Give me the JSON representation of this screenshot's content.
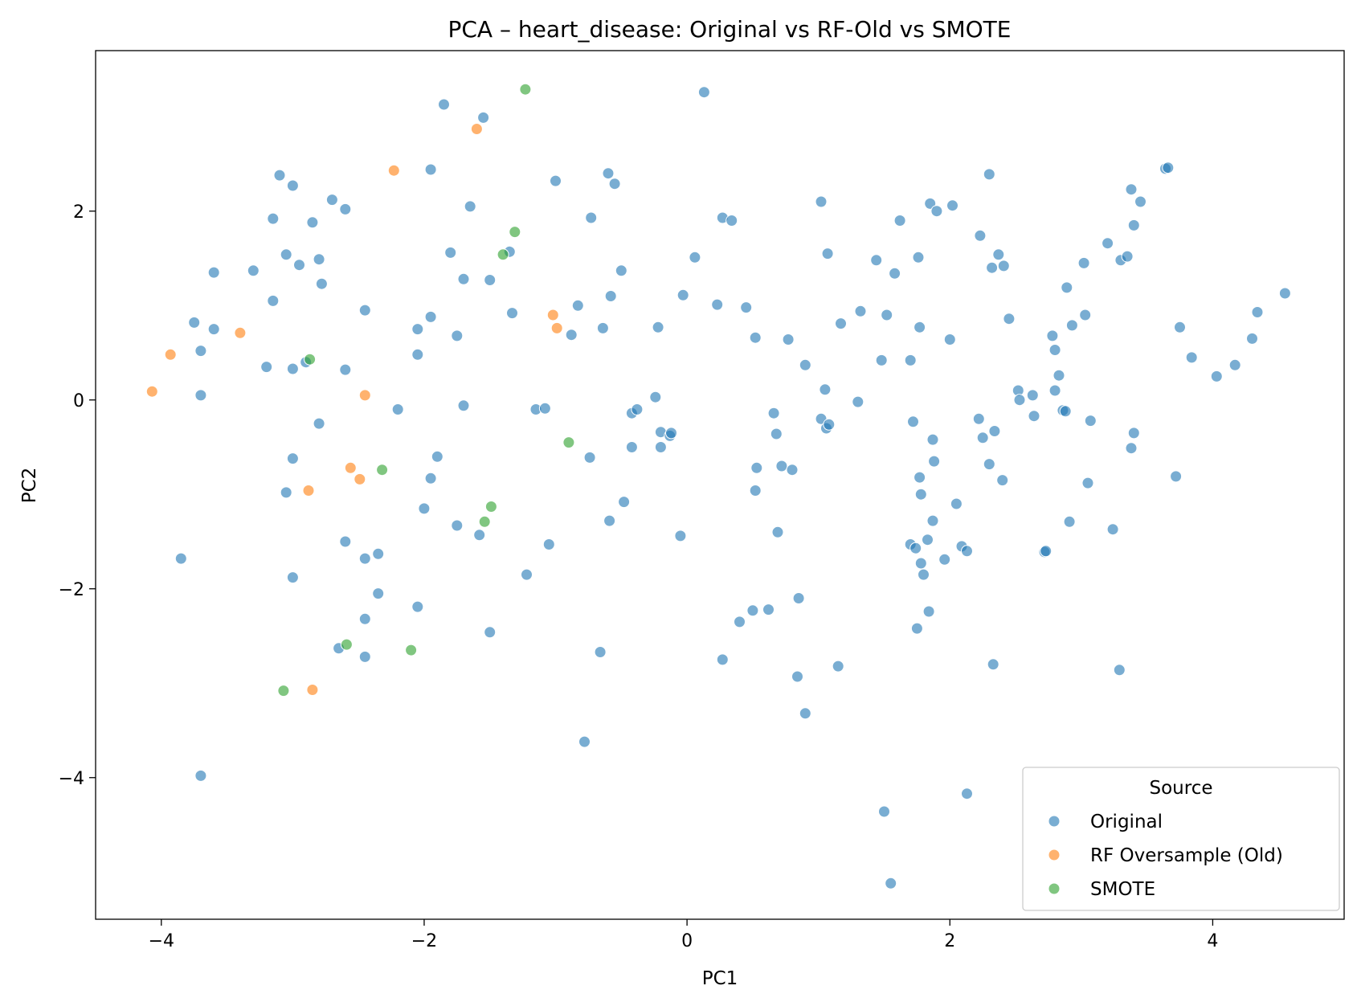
{
  "chart_data": {
    "type": "scatter",
    "title": "PCA – heart_disease: Original vs RF-Old vs SMOTE",
    "xlabel": "PC1",
    "ylabel": "PC2",
    "xlim": [
      -4.5,
      5.0
    ],
    "ylim": [
      -5.5,
      3.7
    ],
    "xticks": [
      -4,
      -2,
      0,
      2,
      4
    ],
    "yticks": [
      -4,
      -2,
      0,
      2
    ],
    "grid": false,
    "legend": {
      "title": "Source",
      "placement": "bottom-right"
    },
    "series": [
      {
        "name": "Original",
        "color": "#1f77b4",
        "points": [
          [
            -3.6,
            1.35
          ],
          [
            -3.3,
            1.37
          ],
          [
            -3.1,
            2.38
          ],
          [
            -3.0,
            2.27
          ],
          [
            -2.7,
            2.12
          ],
          [
            -2.6,
            2.02
          ],
          [
            -3.15,
            1.92
          ],
          [
            -2.85,
            1.88
          ],
          [
            -3.05,
            1.54
          ],
          [
            -2.95,
            1.43
          ],
          [
            -2.8,
            1.49
          ],
          [
            -2.78,
            1.23
          ],
          [
            -3.15,
            1.05
          ],
          [
            -3.75,
            0.82
          ],
          [
            -3.6,
            0.75
          ],
          [
            -3.7,
            0.52
          ],
          [
            -3.7,
            0.05
          ],
          [
            -3.2,
            0.35
          ],
          [
            -3.0,
            0.33
          ],
          [
            -2.9,
            0.4
          ],
          [
            -2.6,
            0.32
          ],
          [
            -2.45,
            0.95
          ],
          [
            -2.8,
            -0.25
          ],
          [
            -3.0,
            -0.62
          ],
          [
            -3.05,
            -0.98
          ],
          [
            -3.85,
            -1.68
          ],
          [
            -2.6,
            -1.5
          ],
          [
            -2.45,
            -1.68
          ],
          [
            -2.35,
            -1.63
          ],
          [
            -3.0,
            -1.88
          ],
          [
            -2.35,
            -2.05
          ],
          [
            -2.45,
            -2.32
          ],
          [
            -2.65,
            -2.63
          ],
          [
            -2.45,
            -2.72
          ],
          [
            -3.7,
            -3.98
          ],
          [
            -1.85,
            3.13
          ],
          [
            -1.55,
            2.99
          ],
          [
            -1.95,
            2.44
          ],
          [
            -1.65,
            2.05
          ],
          [
            -1.8,
            1.56
          ],
          [
            -1.7,
            1.28
          ],
          [
            -1.5,
            1.27
          ],
          [
            -1.35,
            1.57
          ],
          [
            -1.33,
            0.92
          ],
          [
            -2.05,
            0.75
          ],
          [
            -1.95,
            0.88
          ],
          [
            -2.05,
            0.48
          ],
          [
            -1.75,
            0.68
          ],
          [
            -1.7,
            -0.06
          ],
          [
            -2.2,
            -0.1
          ],
          [
            -1.9,
            -0.6
          ],
          [
            -1.95,
            -0.83
          ],
          [
            -2.0,
            -1.15
          ],
          [
            -1.75,
            -1.33
          ],
          [
            -1.58,
            -1.43
          ],
          [
            -2.05,
            -2.19
          ],
          [
            -1.5,
            -2.46
          ],
          [
            -1.22,
            -1.85
          ],
          [
            -1.0,
            2.32
          ],
          [
            -0.6,
            2.4
          ],
          [
            -0.55,
            2.29
          ],
          [
            -0.73,
            1.93
          ],
          [
            -0.5,
            1.37
          ],
          [
            -0.58,
            1.1
          ],
          [
            -0.83,
            1.0
          ],
          [
            -0.88,
            0.69
          ],
          [
            -0.64,
            0.76
          ],
          [
            -1.15,
            -0.1
          ],
          [
            -1.08,
            -0.09
          ],
          [
            -0.74,
            -0.61
          ],
          [
            -0.42,
            -0.14
          ],
          [
            -0.38,
            -0.1
          ],
          [
            -0.24,
            0.03
          ],
          [
            -0.42,
            -0.5
          ],
          [
            -0.2,
            -0.34
          ],
          [
            -0.2,
            -0.5
          ],
          [
            -0.13,
            -0.38
          ],
          [
            -0.12,
            -0.35
          ],
          [
            -0.22,
            0.77
          ],
          [
            -0.05,
            -1.44
          ],
          [
            -0.48,
            -1.08
          ],
          [
            -0.59,
            -1.28
          ],
          [
            -1.05,
            -1.53
          ],
          [
            -0.66,
            -2.67
          ],
          [
            -0.78,
            -3.62
          ],
          [
            0.13,
            3.26
          ],
          [
            0.27,
            1.93
          ],
          [
            0.34,
            1.9
          ],
          [
            0.06,
            1.51
          ],
          [
            -0.03,
            1.11
          ],
          [
            0.23,
            1.01
          ],
          [
            0.45,
            0.98
          ],
          [
            0.52,
            0.66
          ],
          [
            0.52,
            -0.96
          ],
          [
            0.53,
            -0.72
          ],
          [
            0.66,
            -0.14
          ],
          [
            0.68,
            -0.36
          ],
          [
            0.72,
            -0.7
          ],
          [
            0.8,
            -0.74
          ],
          [
            0.69,
            -1.4
          ],
          [
            0.5,
            -2.23
          ],
          [
            0.62,
            -2.22
          ],
          [
            0.4,
            -2.35
          ],
          [
            0.27,
            -2.75
          ],
          [
            0.77,
            0.64
          ],
          [
            0.9,
            0.37
          ],
          [
            0.85,
            -2.1
          ],
          [
            0.84,
            -2.93
          ],
          [
            0.9,
            -3.32
          ],
          [
            1.02,
            2.1
          ],
          [
            1.07,
            1.55
          ],
          [
            1.17,
            0.81
          ],
          [
            1.32,
            0.94
          ],
          [
            1.44,
            1.48
          ],
          [
            1.52,
            0.9
          ],
          [
            1.58,
            1.34
          ],
          [
            1.62,
            1.9
          ],
          [
            1.76,
            1.51
          ],
          [
            1.77,
            0.77
          ],
          [
            1.7,
            0.42
          ],
          [
            1.48,
            0.42
          ],
          [
            1.72,
            -0.23
          ],
          [
            1.05,
            0.11
          ],
          [
            1.02,
            -0.2
          ],
          [
            1.06,
            -0.3
          ],
          [
            1.08,
            -0.26
          ],
          [
            1.3,
            -0.02
          ],
          [
            1.77,
            -0.82
          ],
          [
            1.78,
            -1.0
          ],
          [
            1.7,
            -1.53
          ],
          [
            1.74,
            -1.57
          ],
          [
            1.78,
            -1.73
          ],
          [
            1.8,
            -1.85
          ],
          [
            1.83,
            -1.48
          ],
          [
            1.75,
            -2.42
          ],
          [
            1.84,
            -2.24
          ],
          [
            1.15,
            -2.82
          ],
          [
            1.5,
            -4.36
          ],
          [
            1.55,
            -5.12
          ],
          [
            1.85,
            2.08
          ],
          [
            1.9,
            2.0
          ],
          [
            2.02,
            2.06
          ],
          [
            2.0,
            0.64
          ],
          [
            1.87,
            -0.42
          ],
          [
            1.88,
            -0.65
          ],
          [
            1.87,
            -1.28
          ],
          [
            1.96,
            -1.69
          ],
          [
            2.05,
            -1.1
          ],
          [
            2.09,
            -1.55
          ],
          [
            2.13,
            -1.6
          ],
          [
            2.13,
            -4.17
          ],
          [
            2.22,
            -0.2
          ],
          [
            2.25,
            -0.4
          ],
          [
            2.3,
            -0.68
          ],
          [
            2.32,
            1.4
          ],
          [
            2.3,
            2.39
          ],
          [
            2.23,
            1.74
          ],
          [
            2.37,
            1.54
          ],
          [
            2.41,
            1.42
          ],
          [
            2.45,
            0.86
          ],
          [
            2.4,
            -0.85
          ],
          [
            2.34,
            -0.33
          ],
          [
            2.33,
            -2.8
          ],
          [
            2.52,
            0.1
          ],
          [
            2.53,
            0.0
          ],
          [
            2.63,
            0.05
          ],
          [
            2.64,
            -0.17
          ],
          [
            2.72,
            -1.61
          ],
          [
            2.73,
            -1.6
          ],
          [
            2.8,
            0.1
          ],
          [
            2.78,
            0.68
          ],
          [
            2.8,
            0.53
          ],
          [
            2.83,
            0.26
          ],
          [
            2.86,
            -0.11
          ],
          [
            2.88,
            -0.12
          ],
          [
            2.89,
            1.19
          ],
          [
            2.93,
            0.79
          ],
          [
            2.91,
            -1.29
          ],
          [
            3.02,
            1.45
          ],
          [
            3.03,
            0.9
          ],
          [
            3.05,
            -0.88
          ],
          [
            3.07,
            -0.22
          ],
          [
            3.2,
            1.66
          ],
          [
            3.24,
            -1.37
          ],
          [
            3.3,
            1.48
          ],
          [
            3.35,
            1.52
          ],
          [
            3.38,
            2.23
          ],
          [
            3.4,
            1.85
          ],
          [
            3.45,
            2.1
          ],
          [
            3.38,
            -0.51
          ],
          [
            3.4,
            -0.35
          ],
          [
            3.29,
            -2.86
          ],
          [
            3.64,
            2.45
          ],
          [
            3.66,
            2.46
          ],
          [
            3.75,
            0.77
          ],
          [
            3.72,
            -0.81
          ],
          [
            3.84,
            0.45
          ],
          [
            4.03,
            0.25
          ],
          [
            4.17,
            0.37
          ],
          [
            4.3,
            0.65
          ],
          [
            4.34,
            0.93
          ],
          [
            4.55,
            1.13
          ]
        ]
      },
      {
        "name": "RF Oversample (Old)",
        "color": "#ff7f0e",
        "points": [
          [
            -4.07,
            0.09
          ],
          [
            -3.93,
            0.48
          ],
          [
            -3.4,
            0.71
          ],
          [
            -2.23,
            2.43
          ],
          [
            -1.6,
            2.87
          ],
          [
            -1.02,
            0.9
          ],
          [
            -0.99,
            0.76
          ],
          [
            -2.45,
            0.05
          ],
          [
            -2.56,
            -0.72
          ],
          [
            -2.49,
            -0.84
          ],
          [
            -2.88,
            -0.96
          ],
          [
            -2.85,
            -3.07
          ]
        ]
      },
      {
        "name": "SMOTE",
        "color": "#2ca02c",
        "points": [
          [
            -1.23,
            3.29
          ],
          [
            -1.31,
            1.78
          ],
          [
            -1.4,
            1.54
          ],
          [
            -2.87,
            0.43
          ],
          [
            -0.9,
            -0.45
          ],
          [
            -2.32,
            -0.74
          ],
          [
            -1.49,
            -1.13
          ],
          [
            -1.54,
            -1.29
          ],
          [
            -2.59,
            -2.59
          ],
          [
            -2.1,
            -2.65
          ],
          [
            -3.07,
            -3.08
          ]
        ]
      }
    ]
  }
}
